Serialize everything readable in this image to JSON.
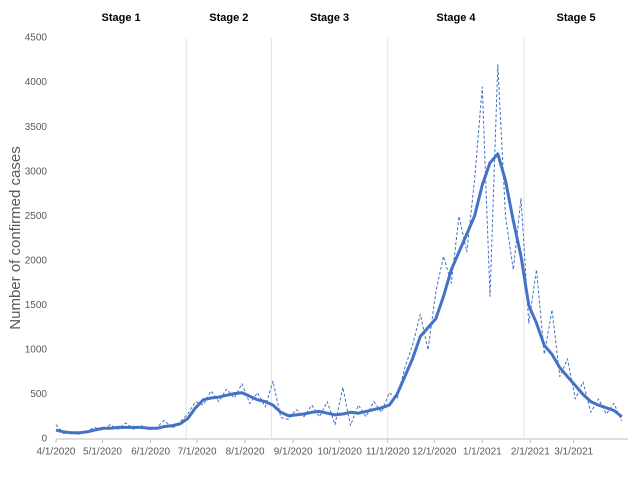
{
  "chart_data": {
    "type": "line",
    "y_label": "Number of confirmed cases",
    "x": [
      "2020-04-01",
      "2020-04-06",
      "2020-04-11",
      "2020-04-16",
      "2020-04-21",
      "2020-04-26",
      "2020-05-01",
      "2020-05-06",
      "2020-05-11",
      "2020-05-16",
      "2020-05-21",
      "2020-05-26",
      "2020-05-31",
      "2020-06-05",
      "2020-06-10",
      "2020-06-15",
      "2020-06-20",
      "2020-06-25",
      "2020-06-30",
      "2020-07-05",
      "2020-07-10",
      "2020-07-15",
      "2020-07-20",
      "2020-07-25",
      "2020-07-30",
      "2020-08-04",
      "2020-08-09",
      "2020-08-14",
      "2020-08-19",
      "2020-08-24",
      "2020-08-29",
      "2020-09-03",
      "2020-09-08",
      "2020-09-13",
      "2020-09-18",
      "2020-09-23",
      "2020-09-28",
      "2020-10-03",
      "2020-10-08",
      "2020-10-13",
      "2020-10-18",
      "2020-10-23",
      "2020-10-28",
      "2020-11-02",
      "2020-11-07",
      "2020-11-12",
      "2020-11-17",
      "2020-11-22",
      "2020-11-27",
      "2020-12-02",
      "2020-12-07",
      "2020-12-12",
      "2020-12-17",
      "2020-12-22",
      "2020-12-27",
      "2021-01-01",
      "2021-01-06",
      "2021-01-11",
      "2021-01-16",
      "2021-01-21",
      "2021-01-26",
      "2021-01-31",
      "2021-02-05",
      "2021-02-10",
      "2021-02-15",
      "2021-02-20",
      "2021-02-25",
      "2021-03-02",
      "2021-03-07",
      "2021-03-12",
      "2021-03-17",
      "2021-03-22",
      "2021-03-27",
      "2021-04-01"
    ],
    "series": [
      {
        "color": "#4472c4",
        "line_style": "dashed",
        "line_width": 1,
        "values": [
          160,
          60,
          80,
          50,
          90,
          130,
          100,
          160,
          110,
          180,
          110,
          150,
          100,
          130,
          210,
          120,
          190,
          280,
          420,
          380,
          540,
          420,
          560,
          460,
          620,
          400,
          520,
          360,
          650,
          240,
          220,
          330,
          250,
          380,
          250,
          420,
          160,
          580,
          150,
          380,
          250,
          420,
          300,
          520,
          450,
          800,
          1050,
          1400,
          1000,
          1650,
          2050,
          1750,
          2500,
          2100,
          2900,
          3950,
          1600,
          4200,
          2500,
          1900,
          2700,
          1300,
          1900,
          950,
          1450,
          700,
          900,
          450,
          640,
          300,
          450,
          280,
          400,
          200
        ]
      },
      {
        "color": "#4472c4",
        "line_style": "solid",
        "line_width": 3,
        "values": [
          100,
          80,
          70,
          70,
          80,
          100,
          120,
          120,
          130,
          130,
          130,
          130,
          120,
          120,
          140,
          150,
          170,
          230,
          350,
          440,
          460,
          470,
          490,
          510,
          520,
          480,
          440,
          420,
          380,
          300,
          260,
          270,
          280,
          300,
          310,
          290,
          270,
          280,
          300,
          290,
          310,
          330,
          350,
          380,
          500,
          700,
          900,
          1150,
          1250,
          1350,
          1600,
          1900,
          2100,
          2300,
          2500,
          2850,
          3100,
          3200,
          2900,
          2450,
          2050,
          1500,
          1300,
          1050,
          950,
          800,
          700,
          600,
          500,
          420,
          380,
          350,
          320,
          250
        ]
      }
    ],
    "xlim": [
      "2020-04-01",
      "2021-04-05"
    ],
    "xticks": [
      {
        "value": "2020-04-01",
        "label": "4/1/2020"
      },
      {
        "value": "2020-05-01",
        "label": "5/1/2020"
      },
      {
        "value": "2020-06-01",
        "label": "6/1/2020"
      },
      {
        "value": "2020-07-01",
        "label": "7/1/2020"
      },
      {
        "value": "2020-08-01",
        "label": "8/1/2020"
      },
      {
        "value": "2020-09-01",
        "label": "9/1/2020"
      },
      {
        "value": "2020-10-01",
        "label": "10/1/2020"
      },
      {
        "value": "2020-11-01",
        "label": "11/1/2020"
      },
      {
        "value": "2020-12-01",
        "label": "12/1/2020"
      },
      {
        "value": "2021-01-01",
        "label": "1/1/2021"
      },
      {
        "value": "2021-02-01",
        "label": "2/1/2021"
      },
      {
        "value": "2021-03-01",
        "label": "3/1/2021"
      }
    ],
    "ylim": [
      0,
      4500
    ],
    "yticks": [
      0,
      500,
      1000,
      1500,
      2000,
      2500,
      3000,
      3500,
      4000,
      4500
    ],
    "grid": false,
    "stages": [
      "Stage 1",
      "Stage 2",
      "Stage 3",
      "Stage 4",
      "Stage 5"
    ],
    "stage_boundaries": [
      "2020-06-24",
      "2020-08-18",
      "2020-11-01",
      "2021-01-28"
    ]
  }
}
